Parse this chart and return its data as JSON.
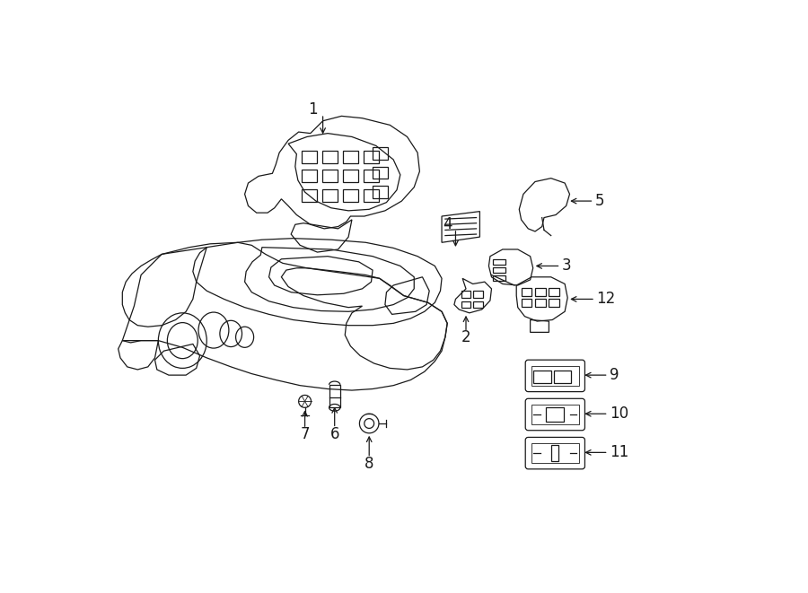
{
  "background_color": "#ffffff",
  "line_color": "#1a1a1a",
  "figsize": [
    9.0,
    6.61
  ],
  "dpi": 100,
  "label_fontsize": 12,
  "arrow_lw": 0.9,
  "part_lw": 0.9
}
